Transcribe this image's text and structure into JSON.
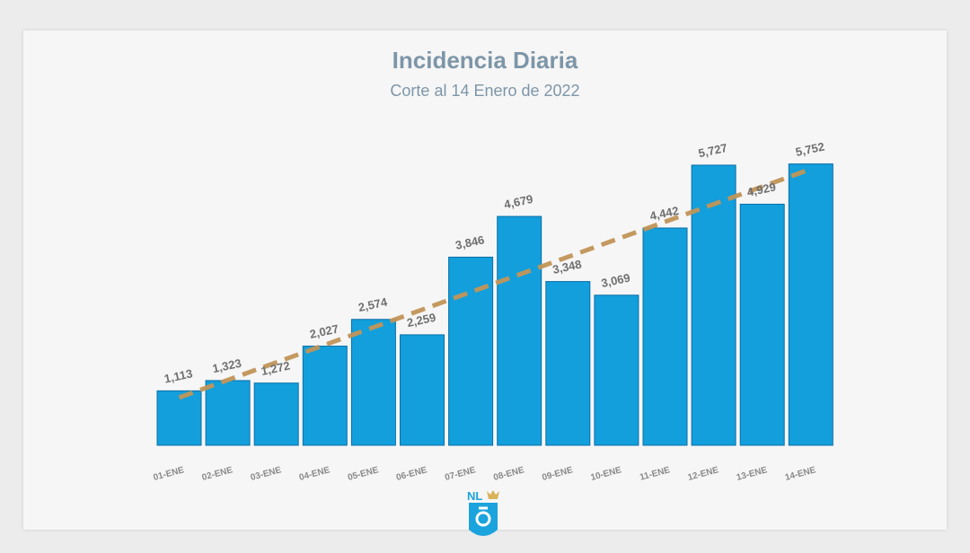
{
  "title": "Incidencia Diaria",
  "subtitle": "Corte al 14 Enero de 2022",
  "logo_text": "NL",
  "colors": {
    "bar": "#129fdc",
    "bar_edge": "#0b6fa8",
    "trend": "#c29558",
    "text": "#7d96a8",
    "label": "#6f6f6f"
  },
  "chart_data": {
    "type": "bar",
    "categories": [
      "01-ENE",
      "02-ENE",
      "03-ENE",
      "04-ENE",
      "05-ENE",
      "06-ENE",
      "07-ENE",
      "08-ENE",
      "09-ENE",
      "10-ENE",
      "11-ENE",
      "12-ENE",
      "13-ENE",
      "14-ENE"
    ],
    "values": [
      1113,
      1323,
      1272,
      2027,
      2574,
      2259,
      3846,
      4679,
      3348,
      3069,
      4442,
      5727,
      4929,
      5752
    ],
    "value_labels": [
      "1,113",
      "1,323",
      "1,272",
      "2,027",
      "2,574",
      "2,259",
      "3,846",
      "4,679",
      "3,348",
      "3,069",
      "4,442",
      "5,727",
      "4,929",
      "5,752"
    ],
    "trendline": {
      "type": "linear",
      "style": "dashed"
    },
    "ylim": [
      0,
      5800
    ],
    "grid": false,
    "legend": "none"
  }
}
